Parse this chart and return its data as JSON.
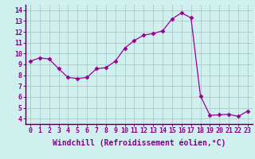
{
  "x": [
    0,
    1,
    2,
    3,
    4,
    5,
    6,
    7,
    8,
    9,
    10,
    11,
    12,
    13,
    14,
    15,
    16,
    17,
    18,
    19,
    20,
    21,
    22,
    23
  ],
  "y": [
    9.3,
    9.6,
    9.5,
    8.6,
    7.8,
    7.7,
    7.8,
    8.6,
    8.7,
    9.3,
    10.5,
    11.2,
    11.7,
    11.85,
    12.1,
    13.2,
    13.75,
    13.3,
    6.1,
    4.3,
    4.35,
    4.4,
    4.2,
    4.7
  ],
  "line_color": "#990099",
  "marker": "D",
  "marker_size": 2.5,
  "bg_color": "#d0f0f0",
  "grid_color": "#b0c8c8",
  "xlabel": "Windchill (Refroidissement éolien,°C)",
  "xlabel_color": "#880088",
  "xlabel_fontsize": 7,
  "ylim": [
    3.5,
    14.5
  ],
  "xlim": [
    -0.5,
    23.5
  ],
  "yticks": [
    4,
    5,
    6,
    7,
    8,
    9,
    10,
    11,
    12,
    13,
    14
  ],
  "xticks": [
    0,
    1,
    2,
    3,
    4,
    5,
    6,
    7,
    8,
    9,
    10,
    11,
    12,
    13,
    14,
    15,
    16,
    17,
    18,
    19,
    20,
    21,
    22,
    23
  ],
  "tick_fontsize": 6,
  "tick_color": "#880088"
}
